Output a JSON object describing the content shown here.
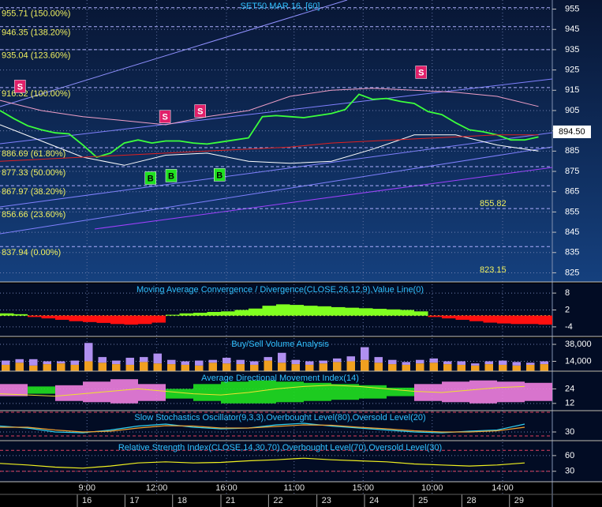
{
  "x_axis": {
    "xlim": [
      0,
      80
    ],
    "time_ticks": [
      {
        "value": 12.6,
        "label": "9:00"
      },
      {
        "value": 22.7,
        "label": "12:00"
      },
      {
        "value": 32.8,
        "label": "16:00"
      },
      {
        "value": 42.6,
        "label": "11:00"
      },
      {
        "value": 52.6,
        "label": "15:00"
      },
      {
        "value": 62.6,
        "label": "10:00"
      },
      {
        "value": 72.8,
        "label": "14:00"
      }
    ],
    "date_ticks": [
      {
        "value": 11.2,
        "label": "16"
      },
      {
        "value": 18.1,
        "label": "17"
      },
      {
        "value": 25,
        "label": "18"
      },
      {
        "value": 32,
        "label": "21"
      },
      {
        "value": 38.9,
        "label": "22"
      },
      {
        "value": 45.9,
        "label": "23"
      },
      {
        "value": 52.8,
        "label": "24"
      },
      {
        "value": 59.9,
        "label": "25"
      },
      {
        "value": 66.9,
        "label": "28"
      },
      {
        "value": 73.8,
        "label": "29"
      }
    ]
  },
  "chart_data": [
    {
      "type": "price",
      "title": "SET50 MAR 16, [60]",
      "ylim": [
        820.5,
        959.5
      ],
      "yticks": [
        825,
        835,
        845,
        855,
        865,
        875,
        885,
        895,
        905,
        915,
        925,
        935,
        945,
        955
      ],
      "series": [
        {
          "color": "#3cff3c",
          "x": [
            0,
            2,
            4,
            6,
            8,
            10,
            12,
            14,
            16,
            18,
            20,
            22,
            24,
            26,
            28,
            30,
            32,
            34,
            36,
            38,
            40,
            42,
            44,
            46,
            48,
            50,
            52,
            54,
            56,
            58,
            60,
            62,
            64,
            66,
            68,
            70,
            72,
            74,
            76,
            78
          ],
          "values": [
            905,
            901,
            897.5,
            895.5,
            894,
            893.5,
            888,
            882,
            884,
            889,
            890.5,
            889,
            890,
            890,
            889,
            888.5,
            889.5,
            890.5,
            891.5,
            902,
            902.5,
            902,
            901.5,
            902.5,
            903.5,
            905.5,
            913,
            910.5,
            911,
            909.5,
            908.5,
            904.5,
            903,
            899,
            895.5,
            894.5,
            893,
            890.5,
            890.5,
            892
          ]
        },
        {
          "color": "#f0a0c8",
          "x": [
            0,
            6,
            12,
            18,
            24,
            30,
            36,
            42,
            48,
            54,
            60,
            66,
            72,
            78
          ],
          "values": [
            910,
            905,
            902,
            900,
            898,
            902,
            905,
            912,
            915,
            916,
            915,
            914,
            912,
            907
          ]
        },
        {
          "color": "#ffffff",
          "x": [
            0,
            6,
            12,
            18,
            24,
            30,
            36,
            42,
            48,
            54,
            60,
            66,
            72,
            78
          ],
          "values": [
            898,
            890,
            882,
            878,
            883,
            884,
            880,
            879,
            880,
            886,
            893,
            893,
            888,
            885
          ]
        },
        {
          "color": "#e02020",
          "x": [
            0,
            6,
            12,
            18,
            24,
            30,
            36,
            42,
            48,
            54,
            60,
            66,
            72,
            78
          ],
          "values": [
            880,
            881,
            882,
            883,
            884,
            885,
            886,
            887,
            889,
            890,
            891,
            892,
            893,
            893
          ]
        }
      ],
      "levels": [
        {
          "value": 955.71,
          "label": "955.71 (150.00%)"
        },
        {
          "value": 946.35,
          "label": "946.35 (138.20%)"
        },
        {
          "value": 935.04,
          "label": "935.04 (123.60%)"
        },
        {
          "value": 916.32,
          "label": "916.32 (100.00%)"
        },
        {
          "value": 886.69,
          "label": "886.69 (61.80%)"
        },
        {
          "value": 877.33,
          "label": "877.33 (50.00%)"
        },
        {
          "value": 867.97,
          "label": "867.97 (38.20%)"
        },
        {
          "value": 856.66,
          "label": "856.66 (23.60%)"
        },
        {
          "value": 837.94,
          "label": "837.94 (0.00%)"
        }
      ],
      "notes": [
        855.82,
        823.15
      ],
      "last_price": {
        "value": 894.5,
        "label": "894.50"
      },
      "signals": [
        {
          "label": "S",
          "x": 2.9,
          "value": 916.9,
          "color": "#e0206a"
        },
        {
          "label": "S",
          "x": 23.9,
          "value": 902,
          "color": "#e0206a"
        },
        {
          "label": "S",
          "x": 29,
          "value": 904.8,
          "color": "#e0206a"
        },
        {
          "label": "S",
          "x": 61,
          "value": 923.9,
          "color": "#e0206a"
        },
        {
          "label": "B",
          "x": 21.8,
          "value": 871.7,
          "color": "#20e020"
        },
        {
          "label": "B",
          "x": 24.8,
          "value": 872.9,
          "color": "#20e020"
        },
        {
          "label": "B",
          "x": 31.8,
          "value": 873.3,
          "color": "#20e020"
        }
      ]
    },
    {
      "type": "histogram",
      "title": "Moving Average Convergence / Divergence(CLOSE,26,12,9),Value Line(0)",
      "ylim": [
        -7.4,
        11.4
      ],
      "yticks": [
        8,
        2,
        -4
      ],
      "pos_color": "#80ff20",
      "neg_color": "#ff1010",
      "x": [
        0,
        2,
        4,
        6,
        8,
        10,
        12,
        14,
        16,
        18,
        20,
        22,
        24,
        26,
        28,
        30,
        32,
        34,
        36,
        38,
        40,
        42,
        44,
        46,
        48,
        50,
        52,
        54,
        56,
        58,
        60,
        62,
        64,
        66,
        68,
        70,
        72,
        74,
        76,
        78
      ],
      "values": [
        0.8,
        0.5,
        -0.5,
        -1,
        -1.5,
        -2,
        -2.3,
        -2.6,
        -3,
        -3.2,
        -3,
        -2.5,
        0.3,
        0.8,
        1,
        1.3,
        1.5,
        2,
        2.5,
        3.5,
        4,
        3.8,
        3.5,
        3.3,
        3,
        2.8,
        2.6,
        2.4,
        2.2,
        2,
        1.5,
        -0.5,
        -1,
        -1.5,
        -2,
        -2.5,
        -2.8,
        -3,
        -3,
        -3.2
      ]
    },
    {
      "type": "stacked_bar",
      "title": "Buy/Sell Volume Analysis",
      "ylim": [
        0,
        47000
      ],
      "yticks": [
        {
          "value": 38000,
          "label": "38,000"
        },
        {
          "value": 14000,
          "label": "14,000"
        }
      ],
      "x": [
        0,
        2,
        4,
        6,
        8,
        10,
        12,
        14,
        16,
        18,
        20,
        22,
        24,
        26,
        28,
        30,
        32,
        34,
        36,
        38,
        40,
        42,
        44,
        46,
        48,
        50,
        52,
        54,
        56,
        58,
        60,
        62,
        64,
        66,
        68,
        70,
        72,
        74,
        76,
        78
      ],
      "series": [
        {
          "color": "#f0a020",
          "values": [
            9000,
            12000,
            8000,
            10000,
            11000,
            9000,
            14000,
            12000,
            10000,
            9000,
            13000,
            11000,
            10000,
            9000,
            8000,
            12000,
            11000,
            10000,
            9000,
            15000,
            12000,
            10000,
            9000,
            11000,
            13000,
            14000,
            16000,
            12000,
            10000,
            9000,
            11000,
            12000,
            10000,
            9000,
            8000,
            10000,
            9000,
            8000,
            9000,
            10000
          ]
        },
        {
          "color": "#b090f0",
          "values": [
            6000,
            5000,
            9000,
            4000,
            3000,
            6000,
            26000,
            8000,
            5000,
            10000,
            7000,
            14000,
            6000,
            5000,
            7000,
            4000,
            8000,
            6000,
            5000,
            5000,
            14000,
            6000,
            5000,
            4000,
            5000,
            7000,
            18000,
            8000,
            6000,
            4000,
            5000,
            6000,
            4000,
            5000,
            3000,
            4000,
            6000,
            5000,
            3000,
            4000
          ]
        }
      ]
    },
    {
      "type": "di",
      "title": "Average Directional Movement Index(14)",
      "ylim": [
        6,
        38
      ],
      "yticks": [
        24,
        12
      ],
      "x": [
        0,
        4,
        8,
        12,
        16,
        20,
        24,
        28,
        32,
        36,
        40,
        44,
        48,
        52,
        56,
        60,
        64,
        68,
        72,
        76
      ],
      "series": [
        {
          "color": "#20e020",
          "values": [
            18,
            26,
            14,
            13,
            12,
            14,
            24,
            28,
            30,
            31,
            30,
            29,
            28,
            27,
            25,
            14,
            13,
            12,
            13,
            14
          ]
        },
        {
          "color": "#f080e0",
          "values": [
            28,
            20,
            27,
            30,
            32,
            28,
            16,
            14,
            12,
            12,
            13,
            14,
            15,
            16,
            18,
            28,
            30,
            31,
            30,
            29
          ]
        },
        {
          "color": "#f0e030",
          "values": [
            20,
            19,
            18,
            20,
            22,
            24,
            22,
            20,
            19,
            21,
            24,
            26,
            27,
            26,
            24,
            22,
            21,
            23,
            25,
            26
          ]
        }
      ]
    },
    {
      "type": "line",
      "title": "Slow Stochastics Oscillator(9,3,3),Overbought Level(80),Oversold Level(20)",
      "ylim": [
        8,
        82
      ],
      "yticks": [
        30
      ],
      "levels": [
        80,
        20
      ],
      "x": [
        0,
        4,
        8,
        12,
        16,
        20,
        24,
        28,
        32,
        36,
        40,
        44,
        48,
        52,
        56,
        60,
        64,
        68,
        72,
        76
      ],
      "series": [
        {
          "color": "#30d0f0",
          "values": [
            45,
            40,
            30,
            28,
            35,
            45,
            50,
            42,
            38,
            40,
            48,
            52,
            45,
            40,
            35,
            30,
            28,
            32,
            35,
            50
          ]
        },
        {
          "color": "#f0a030",
          "values": [
            42,
            42,
            35,
            30,
            32,
            40,
            46,
            45,
            40,
            40,
            44,
            48,
            47,
            42,
            38,
            33,
            30,
            30,
            33,
            42
          ]
        }
      ]
    },
    {
      "type": "line",
      "title": "Relative Strength Index(CLOSE,14,30,70),Overbought Level(70),Oversold Level(30)",
      "ylim": [
        10,
        87
      ],
      "yticks": [
        60,
        30
      ],
      "levels": [
        70,
        30
      ],
      "x": [
        0,
        4,
        8,
        12,
        16,
        20,
        24,
        28,
        32,
        36,
        40,
        44,
        48,
        52,
        56,
        60,
        64,
        68,
        72,
        76
      ],
      "series": [
        {
          "color": "#f0f020",
          "values": [
            45,
            42,
            38,
            36,
            40,
            46,
            48,
            46,
            47,
            50,
            52,
            55,
            52,
            50,
            48,
            44,
            42,
            40,
            42,
            46
          ]
        }
      ]
    }
  ]
}
